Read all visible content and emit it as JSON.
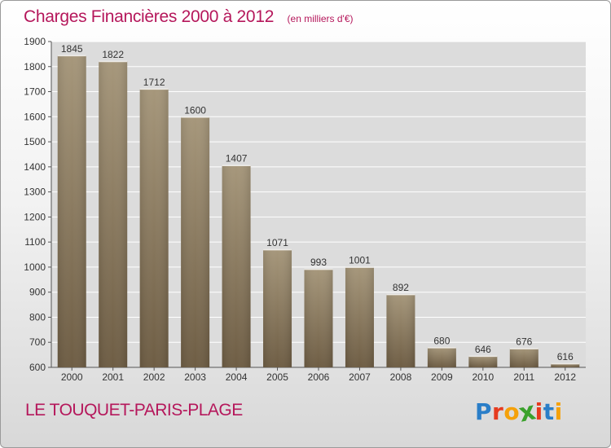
{
  "title": "Charges Financières 2000 à 2012",
  "unit_note": "(en milliers d'€)",
  "place": "LE TOUQUET-PARIS-PLAGE",
  "logo": {
    "letters": [
      "P",
      "r",
      "o",
      "x",
      "i",
      "t",
      "i"
    ],
    "colors": [
      "#2a7ec8",
      "#e63b1f",
      "#f5a10a",
      "#3aa12c",
      "#e63b1f",
      "#2a7ec8",
      "#f5a10a"
    ]
  },
  "colors": {
    "accent": "#b5175b",
    "bar_top": "#a6977b",
    "bar_bottom": "#6e5d44",
    "plot_bg": "#dcdcdc",
    "grid": "#ffffff"
  },
  "chart_data": {
    "type": "bar",
    "categories": [
      "2000",
      "2001",
      "2002",
      "2003",
      "2004",
      "2005",
      "2006",
      "2007",
      "2008",
      "2009",
      "2010",
      "2011",
      "2012"
    ],
    "values": [
      1845,
      1822,
      1712,
      1600,
      1407,
      1071,
      993,
      1001,
      892,
      680,
      646,
      676,
      616
    ],
    "ylim": [
      600,
      1900
    ],
    "yticks": [
      600,
      700,
      800,
      900,
      1000,
      1100,
      1200,
      1300,
      1400,
      1500,
      1600,
      1700,
      1800,
      1900
    ],
    "title": "Charges Financières 2000 à 2012",
    "xlabel": "",
    "ylabel": "",
    "grid": true
  }
}
